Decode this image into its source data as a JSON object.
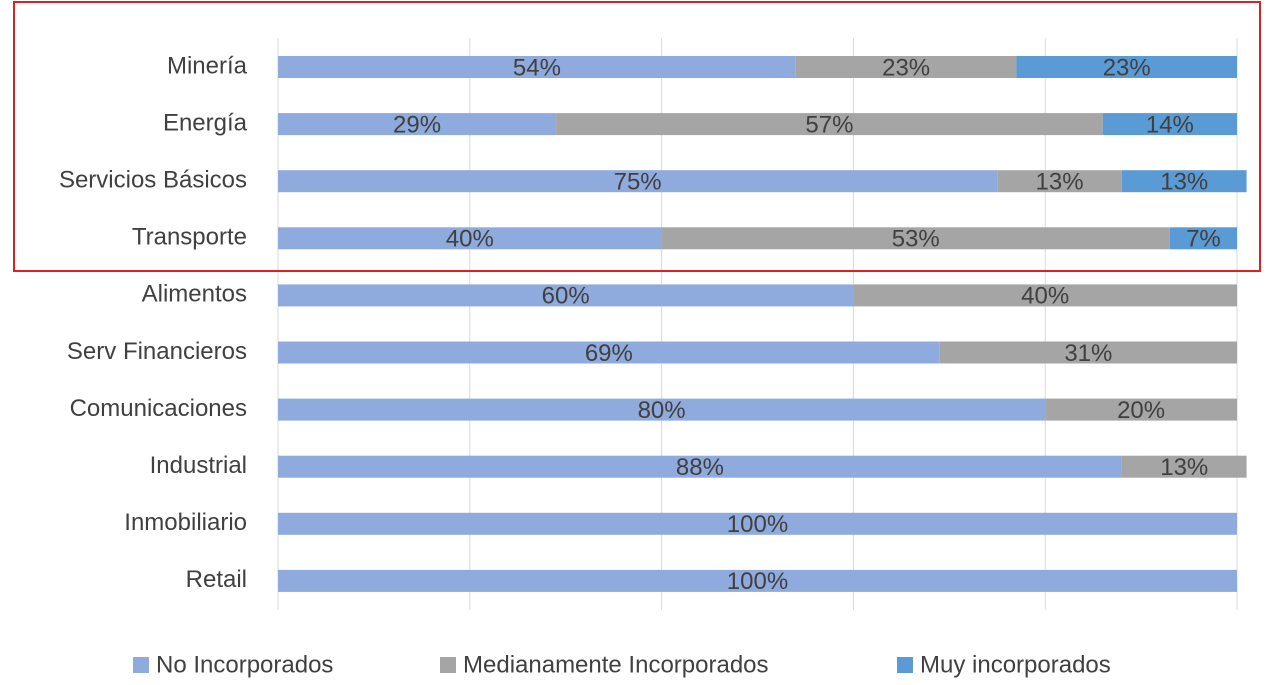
{
  "chart_data": {
    "type": "stacked_barh",
    "categories": [
      "Minería",
      "Energía",
      "Servicios Básicos",
      "Transporte",
      "Alimentos",
      "Serv Financieros",
      "Comunicaciones",
      "Industrial",
      "Inmobiliario",
      "Retail"
    ],
    "series": [
      {
        "name": "No Incorporados",
        "color": "#8faadc",
        "values": [
          54,
          29,
          75,
          40,
          60,
          69,
          80,
          88,
          100,
          100
        ],
        "value_labels": [
          "54%",
          "29%",
          "75%",
          "40%",
          "60%",
          "69%",
          "80%",
          "88%",
          "100%",
          "100%"
        ]
      },
      {
        "name": "Medianamente Incorporados",
        "color": "#a5a5a5",
        "values": [
          23,
          57,
          13,
          53,
          40,
          31,
          20,
          13,
          null,
          null
        ],
        "value_labels": [
          "23%",
          "57%",
          "13%",
          "53%",
          "40%",
          "31%",
          "20%",
          "13%",
          null,
          null
        ]
      },
      {
        "name": "Muy incorporados",
        "color": "#5b9bd5",
        "values": [
          23,
          14,
          13,
          7,
          null,
          null,
          null,
          null,
          null,
          null
        ],
        "value_labels": [
          "23%",
          "14%",
          "13%",
          "7%",
          null,
          null,
          null,
          null,
          null,
          null
        ]
      }
    ],
    "xlim": [
      0,
      100
    ],
    "xticks": [
      0,
      20,
      40,
      60,
      80,
      100
    ],
    "grid": true,
    "legend": "bottom"
  }
}
